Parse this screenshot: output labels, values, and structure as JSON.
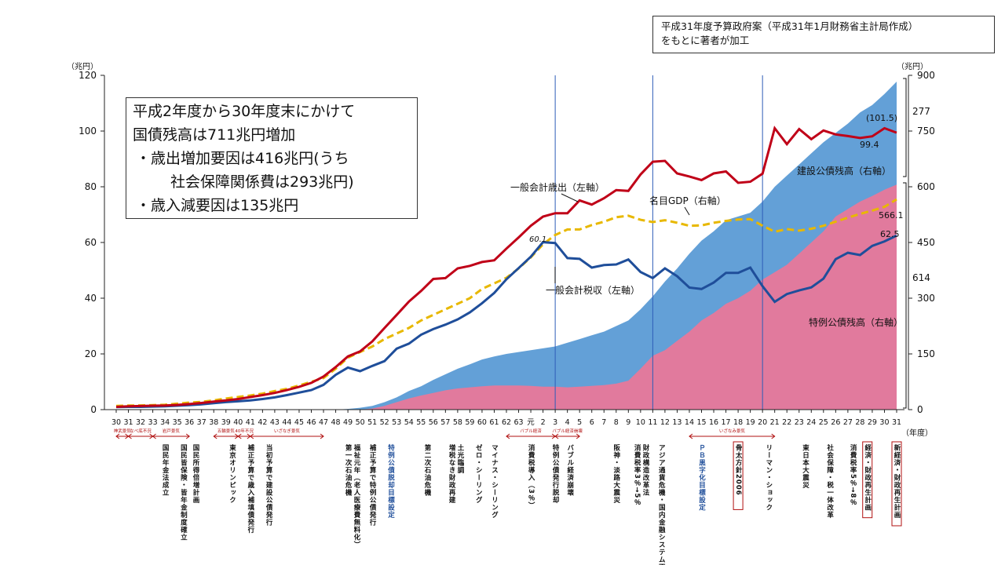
{
  "source_note": [
    "平成31年度予算政府案（平成31年1月財務省主計局作成）",
    "をもとに著者が加工"
  ],
  "summary": {
    "line1": "平成2年度から30年度末にかけて",
    "line2": "国債残高は711兆円増加",
    "line3": "・歳出増加要因は416兆円(うち",
    "line4": "社会保障関係費は293兆円)",
    "line5": "・歳入減要因は135兆円"
  },
  "chart_data": {
    "type": "area",
    "x": [
      "30",
      "31",
      "32",
      "33",
      "34",
      "35",
      "36",
      "37",
      "38",
      "39",
      "40",
      "41",
      "42",
      "43",
      "44",
      "45",
      "46",
      "47",
      "48",
      "49",
      "50",
      "51",
      "52",
      "53",
      "54",
      "55",
      "56",
      "57",
      "58",
      "59",
      "60",
      "61",
      "62",
      "63",
      "元",
      "2",
      "3",
      "4",
      "5",
      "6",
      "7",
      "8",
      "9",
      "10",
      "11",
      "12",
      "13",
      "14",
      "15",
      "16",
      "17",
      "18",
      "19",
      "20",
      "21",
      "22",
      "23",
      "24",
      "25",
      "26",
      "27",
      "28",
      "29",
      "30",
      "31"
    ],
    "xlabel": "（年度）",
    "ylabel_left": "（兆円）",
    "ylabel_right": "（兆円）",
    "ylim_left": [
      0,
      120
    ],
    "yticks_left": [
      0,
      20,
      40,
      60,
      80,
      100,
      120
    ],
    "ylim_right": [
      0,
      900
    ],
    "yticks_right": [
      0,
      150,
      300,
      450,
      600,
      750,
      900
    ],
    "series": [
      {
        "name": "一般会計歳出（左軸）",
        "axis": "left",
        "color": "#c00018",
        "values": [
          1.0,
          1.2,
          1.3,
          1.4,
          1.5,
          1.7,
          2.0,
          2.4,
          2.9,
          3.3,
          3.8,
          4.5,
          5.2,
          6.0,
          7.0,
          8.2,
          9.6,
          11.9,
          15.3,
          19.1,
          20.9,
          24.5,
          29.3,
          34.0,
          38.8,
          42.6,
          46.9,
          47.2,
          50.7,
          51.6,
          53.0,
          53.6,
          57.8,
          61.8,
          66.0,
          69.3,
          70.5,
          70.5,
          75.1,
          73.6,
          75.9,
          78.8,
          78.5,
          84.4,
          89.0,
          89.3,
          84.8,
          83.7,
          82.4,
          84.8,
          85.5,
          81.4,
          81.8,
          84.7,
          101.0,
          95.3,
          100.7,
          97.1,
          100.2,
          98.8,
          98.2,
          97.5,
          98.1,
          101.0,
          99.4
        ]
      },
      {
        "name": "一般会計税収（左軸）",
        "axis": "left",
        "color": "#1f4e9a",
        "values": [
          0.9,
          1.0,
          1.0,
          1.1,
          1.2,
          1.4,
          1.6,
          1.9,
          2.3,
          2.7,
          3.0,
          3.3,
          3.8,
          4.4,
          5.2,
          6.1,
          7.0,
          8.9,
          12.5,
          15.1,
          13.8,
          15.7,
          17.4,
          21.9,
          23.7,
          26.9,
          28.9,
          30.5,
          32.4,
          34.9,
          38.2,
          41.9,
          46.8,
          50.8,
          54.9,
          60.1,
          59.8,
          54.4,
          54.1,
          51.0,
          51.9,
          52.1,
          53.9,
          49.4,
          47.2,
          50.7,
          47.9,
          43.8,
          43.3,
          45.6,
          49.1,
          49.1,
          51.0,
          44.3,
          38.7,
          41.5,
          42.8,
          43.9,
          47.0,
          54.0,
          56.3,
          55.5,
          58.8,
          60.4,
          62.5
        ]
      },
      {
        "name": "名目GDP（右軸）",
        "axis": "right",
        "color": "#e8b800",
        "dashed": true,
        "values": [
          10,
          11,
          11.5,
          12,
          13,
          16,
          19,
          21,
          25,
          30,
          34,
          38,
          43,
          50,
          56,
          65,
          75,
          85,
          110,
          140,
          155,
          170,
          190,
          205,
          220,
          240,
          255,
          270,
          285,
          300,
          325,
          340,
          355,
          380,
          410,
          445,
          470,
          485,
          485,
          497,
          506,
          518,
          522,
          511,
          505,
          510,
          503,
          495,
          496,
          503,
          508,
          512,
          513,
          495,
          479,
          486,
          482,
          487,
          495,
          506,
          517,
          527,
          536,
          546,
          566.1
        ]
      },
      {
        "name": "建設公債残高（右軸）",
        "axis": "right",
        "color": "#5b9bd5",
        "values": [
          0,
          0,
          0,
          0,
          0,
          0,
          0,
          0,
          0,
          0,
          0,
          0,
          0,
          0,
          0,
          0,
          0,
          0,
          0,
          2,
          5,
          10,
          20,
          33,
          50,
          63,
          80,
          95,
          110,
          122,
          135,
          143,
          150,
          155,
          160,
          165,
          170,
          180,
          190,
          200,
          210,
          225,
          240,
          270,
          305,
          345,
          380,
          420,
          455,
          480,
          510,
          520,
          530,
          560,
          600,
          630,
          660,
          690,
          720,
          745,
          770,
          800,
          820,
          850,
          883
        ]
      },
      {
        "name": "特例公債残高（右軸）",
        "axis": "right",
        "color": "#e8789a",
        "values": [
          0,
          0,
          0,
          0,
          0,
          0,
          0,
          0,
          0,
          0,
          0,
          0,
          0,
          0,
          0,
          0,
          0,
          0,
          0,
          0,
          0,
          3,
          10,
          20,
          30,
          38,
          45,
          52,
          57,
          60,
          63,
          65,
          65,
          65,
          64,
          62,
          62,
          60,
          62,
          64,
          66,
          70,
          78,
          110,
          145,
          160,
          185,
          210,
          240,
          260,
          285,
          300,
          320,
          350,
          370,
          390,
          420,
          450,
          480,
          520,
          540,
          560,
          575,
          592,
          606
        ]
      }
    ],
    "annotations": {
      "expenditure_label": "一般会計歳出（左軸）",
      "tax_label": "一般会計税収（左軸）",
      "gdp_label": "名目GDP（右軸）",
      "construction_label": "建設公債残高（右軸）",
      "deficit_label": "特例公債残高（右軸）",
      "tax_peak": "60.1",
      "exp_2018": "(101.5)",
      "exp_2019": "99.4",
      "gdp_2019": "566.1",
      "tax_2019": "62.5",
      "bracket_total": "277",
      "bracket_deficit": "614"
    },
    "eras": [
      {
        "label": "神武景気",
        "from": 0,
        "to": 1
      },
      {
        "label": "なべ底不況",
        "from": 1,
        "to": 3
      },
      {
        "label": "岩戸景気",
        "from": 3,
        "to": 6
      },
      {
        "label": "五輪景気",
        "from": 8,
        "to": 10
      },
      {
        "label": "40年不況",
        "from": 10,
        "to": 11
      },
      {
        "label": "いざなぎ景気",
        "from": 11,
        "to": 17
      },
      {
        "label": "バブル経済",
        "from": 32,
        "to": 36
      },
      {
        "label": "バブル経済崩壊",
        "from": 36,
        "to": 38
      },
      {
        "label": "いざなみ景気",
        "from": 47,
        "to": 54
      }
    ],
    "events": [
      {
        "x": 4,
        "text": "国民年金法成立"
      },
      {
        "x": 5.5,
        "text": "国民皆保険・皆年金制度確立"
      },
      {
        "x": 6.5,
        "text": "国民所得倍増計画"
      },
      {
        "x": 9.5,
        "text": "東京オリンピック"
      },
      {
        "x": 11,
        "text": "補正予算で歳入補填債発行"
      },
      {
        "x": 12.5,
        "text": "当初予算で建設公債発行"
      },
      {
        "x": 19,
        "text": "第一次石油危機"
      },
      {
        "x": 19.7,
        "text": "福祉元年（老人医療費無料化）"
      },
      {
        "x": 21,
        "text": "補正予算で特例公債発行"
      },
      {
        "x": 22.5,
        "text": "特例公債脱却目標設定",
        "color": "#1f4e9a"
      },
      {
        "x": 25.5,
        "text": "第二次石油危機"
      },
      {
        "x": 27.5,
        "text": "増税なき財政再建"
      },
      {
        "x": 28.2,
        "text": "土光臨調"
      },
      {
        "x": 29.7,
        "text": "ゼロ・シーリング"
      },
      {
        "x": 31,
        "text": "マイナス・シーリング"
      },
      {
        "x": 34,
        "text": "消費税導入（3％）"
      },
      {
        "x": 36,
        "text": "特例公債発行脱却"
      },
      {
        "x": 37.2,
        "text": "バブル経済崩壊"
      },
      {
        "x": 41,
        "text": "阪神・淡路大震災"
      },
      {
        "x": 42.7,
        "text": "消費税率3％→5％"
      },
      {
        "x": 43.4,
        "text": "財政構造改革法"
      },
      {
        "x": 44.7,
        "text": "アジア通貨危機・国内金融システム不安"
      },
      {
        "x": 48,
        "text": "ＰＢ黒字化目標設定",
        "color": "#1f4e9a"
      },
      {
        "x": 51,
        "text": "骨太方針2006",
        "boxed": true
      },
      {
        "x": 53.5,
        "text": "リーマン・ショック"
      },
      {
        "x": 56.5,
        "text": "東日本大震災"
      },
      {
        "x": 58.5,
        "text": "社会保障・税一体改革"
      },
      {
        "x": 60.4,
        "text": "消費税率5％→8％"
      },
      {
        "x": 61.6,
        "text": "経済・財政再生計画",
        "boxed": true
      },
      {
        "x": 64,
        "text": "新経済・財政再生計画",
        "boxed": true
      }
    ]
  }
}
